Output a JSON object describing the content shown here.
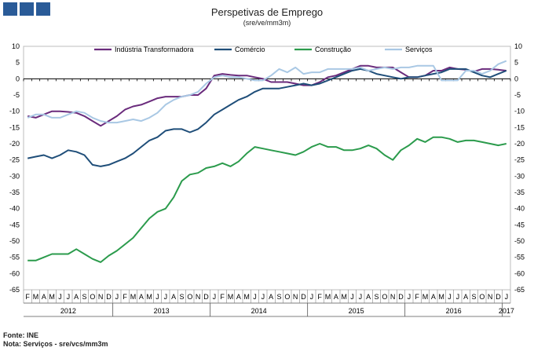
{
  "chart_data": {
    "type": "line",
    "title": "Perspetivas de Emprego",
    "subtitle": "(sre/ve/mm3m)",
    "ylim": [
      -65,
      10
    ],
    "yticks": [
      10,
      5,
      0,
      -5,
      -10,
      -15,
      -20,
      -25,
      -30,
      -35,
      -40,
      -45,
      -50,
      -55,
      -60,
      -65
    ],
    "month_labels": [
      "F",
      "M",
      "A",
      "M",
      "J",
      "J",
      "A",
      "S",
      "O",
      "N",
      "D",
      "J",
      "F",
      "M",
      "A",
      "M",
      "J",
      "J",
      "A",
      "S",
      "O",
      "N",
      "D",
      "J",
      "F",
      "M",
      "A",
      "M",
      "J",
      "J",
      "A",
      "S",
      "O",
      "N",
      "D",
      "J",
      "F",
      "M",
      "A",
      "M",
      "J",
      "J",
      "A",
      "S",
      "O",
      "N",
      "D",
      "J",
      "F",
      "M",
      "A",
      "M",
      "J",
      "J",
      "A",
      "S",
      "O",
      "N",
      "D",
      "J"
    ],
    "years": [
      {
        "label": "2012",
        "start": 0,
        "end": 10
      },
      {
        "label": "2013",
        "start": 11,
        "end": 22
      },
      {
        "label": "2014",
        "start": 23,
        "end": 34
      },
      {
        "label": "2015",
        "start": 35,
        "end": 46
      },
      {
        "label": "2016",
        "start": 47,
        "end": 58
      },
      {
        "label": "2017",
        "start": 59,
        "end": 59
      }
    ],
    "legend_position": "top",
    "series": [
      {
        "name": "Indústria Transformadora",
        "color": "#6a2b7c",
        "values": [
          -11.5,
          -12,
          -11,
          -10,
          -10,
          -10.2,
          -10.5,
          -11.5,
          -13,
          -14.5,
          -13,
          -11.5,
          -9.5,
          -8.5,
          -8,
          -7,
          -6,
          -5.5,
          -5.5,
          -5.5,
          -5,
          -5,
          -3,
          1,
          1.5,
          1.2,
          1,
          1,
          0.5,
          0,
          -1,
          -1,
          -1,
          -1.5,
          -2,
          -2,
          -1,
          0.5,
          1,
          2,
          3,
          4,
          4,
          3.5,
          3.5,
          3.5,
          2,
          0.5,
          0.5,
          1,
          2.5,
          2.5,
          3.5,
          3,
          2.8,
          2.2,
          3,
          3,
          2.8,
          2.5
        ]
      },
      {
        "name": "Comércio",
        "color": "#1f4e79",
        "values": [
          -24.5,
          -24,
          -23.5,
          -24.5,
          -23.5,
          -22,
          -22.5,
          -23.5,
          -26.5,
          -27,
          -26.5,
          -25.5,
          -24.5,
          -23,
          -21,
          -19,
          -18,
          -16,
          -15.5,
          -15.5,
          -16.5,
          -15.5,
          -13.5,
          -11,
          -9.5,
          -8,
          -6.5,
          -5.5,
          -4,
          -3,
          -3,
          -3,
          -2.5,
          -2,
          -1.5,
          -2,
          -1.5,
          -0.5,
          0.5,
          1.5,
          2.5,
          3,
          2.5,
          1.5,
          1,
          0.5,
          0,
          0.5,
          0.5,
          1,
          1.5,
          2,
          3,
          3,
          3,
          2,
          1,
          0.5,
          1.5,
          2.5
        ]
      },
      {
        "name": "Construção",
        "color": "#2b9b4c",
        "values": [
          -56,
          -56,
          -55,
          -54,
          -54,
          -54,
          -52.5,
          -54,
          -55.5,
          -56.5,
          -54.5,
          -53,
          -51,
          -49,
          -46,
          -43,
          -41,
          -40,
          -36.5,
          -31.5,
          -29.5,
          -29,
          -27.5,
          -27,
          -26,
          -27,
          -25.5,
          -23,
          -21,
          -21.5,
          -22,
          -22.5,
          -23,
          -23.5,
          -22.5,
          -21,
          -20,
          -21,
          -21,
          -22,
          -22,
          -21.5,
          -20.5,
          -21.5,
          -23.5,
          -25,
          -22,
          -20.5,
          -18.5,
          -19.5,
          -18,
          -18,
          -18.5,
          -19.5,
          -19,
          -19,
          -19.5,
          -20,
          -20.5,
          -20
        ]
      },
      {
        "name": "Serviços",
        "color": "#a9c8e4",
        "values": [
          -12,
          -11,
          -11,
          -12,
          -12,
          -11,
          -10,
          -10.5,
          -12,
          -13,
          -13.5,
          -13.5,
          -13,
          -12.5,
          -13,
          -12,
          -10.5,
          -8,
          -6.5,
          -5.5,
          -5,
          -4,
          -1.5,
          0.5,
          1,
          0.5,
          0.5,
          0,
          -0.5,
          -0.5,
          1,
          3,
          2,
          3.5,
          1.5,
          2,
          2,
          3,
          3,
          3,
          3,
          3.5,
          2.5,
          3,
          3.5,
          3,
          3.5,
          3.5,
          4,
          4,
          4,
          -0.5,
          -0.5,
          -0.5,
          2.5,
          2.5,
          1.5,
          2.5,
          4.5,
          5.5
        ]
      }
    ]
  },
  "footer": {
    "source": "Fonte: INE",
    "note": "Nota: Serviços - sre/vcs/mm3m"
  }
}
